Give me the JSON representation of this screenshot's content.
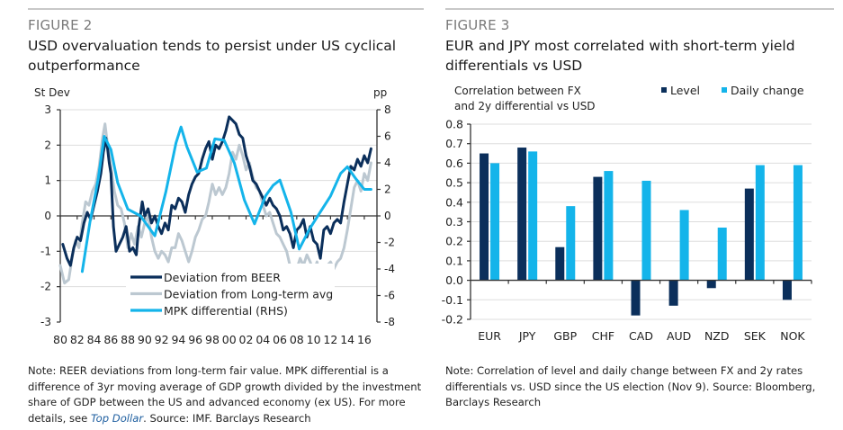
{
  "figure2": {
    "label": "FIGURE 2",
    "title_line1": "USD overvaluation tends to persist under US cyclical",
    "title_line2": "outperformance",
    "note_part1": "Note: REER deviations from long-term fair value. MPK differential is a difference of 3yr moving average of GDP growth divided by the investment share of GDP between the US and advanced economy (ex US). For more details, see ",
    "note_link": "Top Dollar",
    "note_part2": ". Source: IMF. Barclays Research"
  },
  "figure3": {
    "label": "FIGURE 3",
    "title_line1": "EUR and JPY most correlated with short-term yield",
    "title_line2": "differentials vs USD",
    "note": "Note: Correlation of level and daily change between FX and 2y rates differentials vs. USD since the US election (Nov 9). Source: Bloomberg, Barclays Research"
  },
  "colors": {
    "navy": "#0b2f5b",
    "grey": "#bcc8d1",
    "cyan": "#14b4ea",
    "grid": "#dddddd",
    "axis": "#333333"
  },
  "chart_data": [
    {
      "type": "line",
      "title": "USD overvaluation tends to persist under US cyclical outperformance",
      "ylabel_left": "St Dev",
      "ylabel_right": "pp",
      "ylim_left": [
        -3,
        3
      ],
      "ylim_right": [
        -8,
        8
      ],
      "yticks_left": [
        "3",
        "2",
        "1",
        "0",
        "-1",
        "-2",
        "-3"
      ],
      "yticks_right": [
        "8",
        "6",
        "4",
        "2",
        "0",
        "-2",
        "-4",
        "-6",
        "-8"
      ],
      "xlim": [
        1980,
        2017.5
      ],
      "xticks": [
        "80",
        "82",
        "84",
        "86",
        "88",
        "90",
        "92",
        "94",
        "96",
        "98",
        "00",
        "02",
        "04",
        "06",
        "08",
        "10",
        "12",
        "14",
        "16"
      ],
      "grid": true,
      "legend_position": "bottom-center",
      "series": [
        {
          "name": "Deviation from BEER",
          "axis": "left",
          "color": "#0b2f5b",
          "x": [
            1980.3,
            1980.8,
            1981.2,
            1981.6,
            1982.0,
            1982.4,
            1982.8,
            1983.2,
            1983.6,
            1984.0,
            1984.4,
            1984.8,
            1985.1,
            1985.4,
            1985.6,
            1985.8,
            1986.0,
            1986.3,
            1986.6,
            1987.0,
            1987.4,
            1987.8,
            1988.2,
            1988.6,
            1989.0,
            1989.3,
            1989.7,
            1990.0,
            1990.4,
            1990.8,
            1991.2,
            1991.6,
            1992.0,
            1992.4,
            1992.8,
            1993.2,
            1993.6,
            1994.0,
            1994.4,
            1994.8,
            1995.2,
            1995.6,
            1996.0,
            1996.4,
            1996.8,
            1997.2,
            1997.6,
            1998.0,
            1998.4,
            1998.8,
            1999.2,
            1999.6,
            2000.0,
            2000.4,
            2000.8,
            2001.2,
            2001.6,
            2002.0,
            2002.4,
            2002.8,
            2003.2,
            2003.6,
            2004.0,
            2004.4,
            2004.8,
            2005.2,
            2005.6,
            2006.0,
            2006.4,
            2006.8,
            2007.2,
            2007.6,
            2008.0,
            2008.4,
            2008.8,
            2009.2,
            2009.6,
            2010.0,
            2010.4,
            2010.8,
            2011.2,
            2011.6,
            2012.0,
            2012.4,
            2012.8,
            2013.2,
            2013.6,
            2014.0,
            2014.4,
            2014.8,
            2015.2,
            2015.6,
            2016.0,
            2016.4,
            2016.8
          ],
          "y": [
            -0.8,
            -1.2,
            -1.4,
            -0.9,
            -0.6,
            -0.7,
            -0.2,
            0.1,
            -0.1,
            0.3,
            0.7,
            1.2,
            1.8,
            2.2,
            1.9,
            1.5,
            1.2,
            -0.3,
            -1.0,
            -0.8,
            -0.6,
            -0.3,
            -1.0,
            -0.9,
            -1.1,
            -0.3,
            0.4,
            0.0,
            0.2,
            -0.2,
            0.0,
            -0.3,
            -0.5,
            -0.2,
            -0.4,
            0.3,
            0.2,
            0.5,
            0.4,
            0.1,
            0.6,
            0.9,
            1.1,
            1.2,
            1.6,
            1.9,
            2.1,
            1.6,
            2.0,
            1.9,
            2.1,
            2.4,
            2.8,
            2.7,
            2.6,
            2.3,
            2.2,
            1.7,
            1.4,
            1.0,
            0.9,
            0.7,
            0.5,
            0.3,
            0.5,
            0.3,
            0.2,
            0.0,
            -0.4,
            -0.3,
            -0.5,
            -0.9,
            -0.4,
            -0.3,
            -0.1,
            -0.6,
            -0.3,
            -0.7,
            -0.8,
            -1.2,
            -0.4,
            -0.3,
            -0.5,
            -0.2,
            -0.1,
            -0.2,
            0.4,
            0.9,
            1.4,
            1.3,
            1.6,
            1.4,
            1.7,
            1.5,
            1.9
          ]
        },
        {
          "name": "Deviation from Long-term avg",
          "axis": "left",
          "color": "#bcc8d1",
          "x": [
            1980.0,
            1980.5,
            1981.0,
            1981.4,
            1981.8,
            1982.2,
            1982.6,
            1983.0,
            1983.4,
            1983.8,
            1984.2,
            1984.6,
            1985.0,
            1985.3,
            1985.6,
            1986.0,
            1986.4,
            1986.8,
            1987.2,
            1987.6,
            1988.0,
            1988.4,
            1988.8,
            1989.2,
            1989.6,
            1990.0,
            1990.4,
            1990.8,
            1991.2,
            1991.6,
            1992.0,
            1992.4,
            1992.8,
            1993.2,
            1993.6,
            1994.0,
            1994.4,
            1994.8,
            1995.2,
            1995.6,
            1996.0,
            1996.4,
            1996.8,
            1997.2,
            1997.6,
            1998.0,
            1998.4,
            1998.8,
            1999.2,
            1999.6,
            2000.0,
            2000.4,
            2000.8,
            2001.2,
            2001.6,
            2002.0,
            2002.4,
            2002.8,
            2003.2,
            2003.6,
            2004.0,
            2004.4,
            2004.8,
            2005.2,
            2005.6,
            2006.0,
            2006.4,
            2006.8,
            2007.2,
            2007.6,
            2008.0,
            2008.4,
            2008.8,
            2009.2,
            2009.6,
            2010.0,
            2010.4,
            2010.8,
            2011.2,
            2011.6,
            2012.0,
            2012.4,
            2012.8,
            2013.2,
            2013.6,
            2014.0,
            2014.4,
            2014.8,
            2015.2,
            2015.6,
            2016.0,
            2016.4,
            2016.8
          ],
          "y": [
            -1.4,
            -1.9,
            -1.8,
            -1.2,
            -0.7,
            -0.9,
            -0.2,
            0.4,
            0.3,
            0.7,
            0.9,
            1.4,
            2.2,
            2.6,
            2.0,
            1.4,
            0.7,
            0.3,
            0.2,
            -0.2,
            -0.9,
            -0.5,
            -0.8,
            -0.3,
            -0.6,
            -0.2,
            0.0,
            -0.6,
            -1.0,
            -1.2,
            -1.0,
            -1.1,
            -1.3,
            -0.9,
            -0.9,
            -0.5,
            -0.7,
            -1.0,
            -1.3,
            -1.0,
            -0.6,
            -0.4,
            -0.1,
            0.0,
            0.4,
            0.9,
            0.6,
            0.8,
            0.6,
            0.8,
            1.2,
            1.8,
            1.6,
            2.0,
            1.7,
            1.3,
            1.5,
            1.1,
            0.8,
            0.7,
            0.3,
            0.0,
            0.1,
            -0.2,
            -0.5,
            -0.6,
            -0.8,
            -1.0,
            -1.4,
            -1.8,
            -1.5,
            -1.2,
            -1.4,
            -1.1,
            -1.3,
            -1.6,
            -1.3,
            -1.9,
            -1.7,
            -1.4,
            -1.3,
            -1.5,
            -1.3,
            -1.2,
            -0.9,
            -0.4,
            0.2,
            0.8,
            1.0,
            0.7,
            1.2,
            1.0,
            1.5
          ]
        },
        {
          "name": "MPK differential (RHS)",
          "axis": "right",
          "color": "#14b4ea",
          "x": [
            1982.6,
            1983.5,
            1984.5,
            1985.2,
            1986.0,
            1986.8,
            1988.0,
            1989.5,
            1991.2,
            1992.5,
            1993.7,
            1994.3,
            1995.0,
            1996.2,
            1997.3,
            1998.3,
            1999.4,
            2000.6,
            2001.8,
            2003.0,
            2004.3,
            2005.2,
            2006.0,
            2007.3,
            2008.3,
            2009.5,
            2010.8,
            2012.0,
            2013.2,
            2014.0,
            2015.0,
            2016.0,
            2016.8
          ],
          "y": [
            -4.2,
            -0.5,
            2.8,
            6.0,
            5.0,
            2.5,
            0.5,
            0.0,
            -1.5,
            1.8,
            5.5,
            6.7,
            5.2,
            3.3,
            3.6,
            5.8,
            5.7,
            4.0,
            1.2,
            -0.6,
            1.5,
            2.3,
            2.7,
            0.3,
            -2.5,
            -1.0,
            0.3,
            1.5,
            3.2,
            3.7,
            2.8,
            2.0,
            2.0
          ]
        }
      ]
    },
    {
      "type": "bar",
      "title": "EUR and JPY most correlated with short-term yield differentials vs USD",
      "ylabel": "Correlation between FX and 2y differential vs USD",
      "ylim": [
        -0.2,
        0.8
      ],
      "yticks": [
        "0.8",
        "0.7",
        "0.6",
        "0.5",
        "0.4",
        "0.3",
        "0.2",
        "0.1",
        "0.0",
        "-0.1",
        "-0.2"
      ],
      "grid": true,
      "legend_position": "top-right",
      "categories": [
        "EUR",
        "JPY",
        "GBP",
        "CHF",
        "CAD",
        "AUD",
        "NZD",
        "SEK",
        "NOK"
      ],
      "series": [
        {
          "name": "Level",
          "color": "#0b2f5b",
          "values": [
            0.65,
            0.68,
            0.17,
            0.53,
            -0.18,
            -0.13,
            -0.04,
            0.47,
            -0.1
          ]
        },
        {
          "name": "Daily change",
          "color": "#14b4ea",
          "values": [
            0.6,
            0.66,
            0.38,
            0.56,
            0.51,
            0.36,
            0.27,
            0.59,
            0.59
          ]
        }
      ]
    }
  ]
}
